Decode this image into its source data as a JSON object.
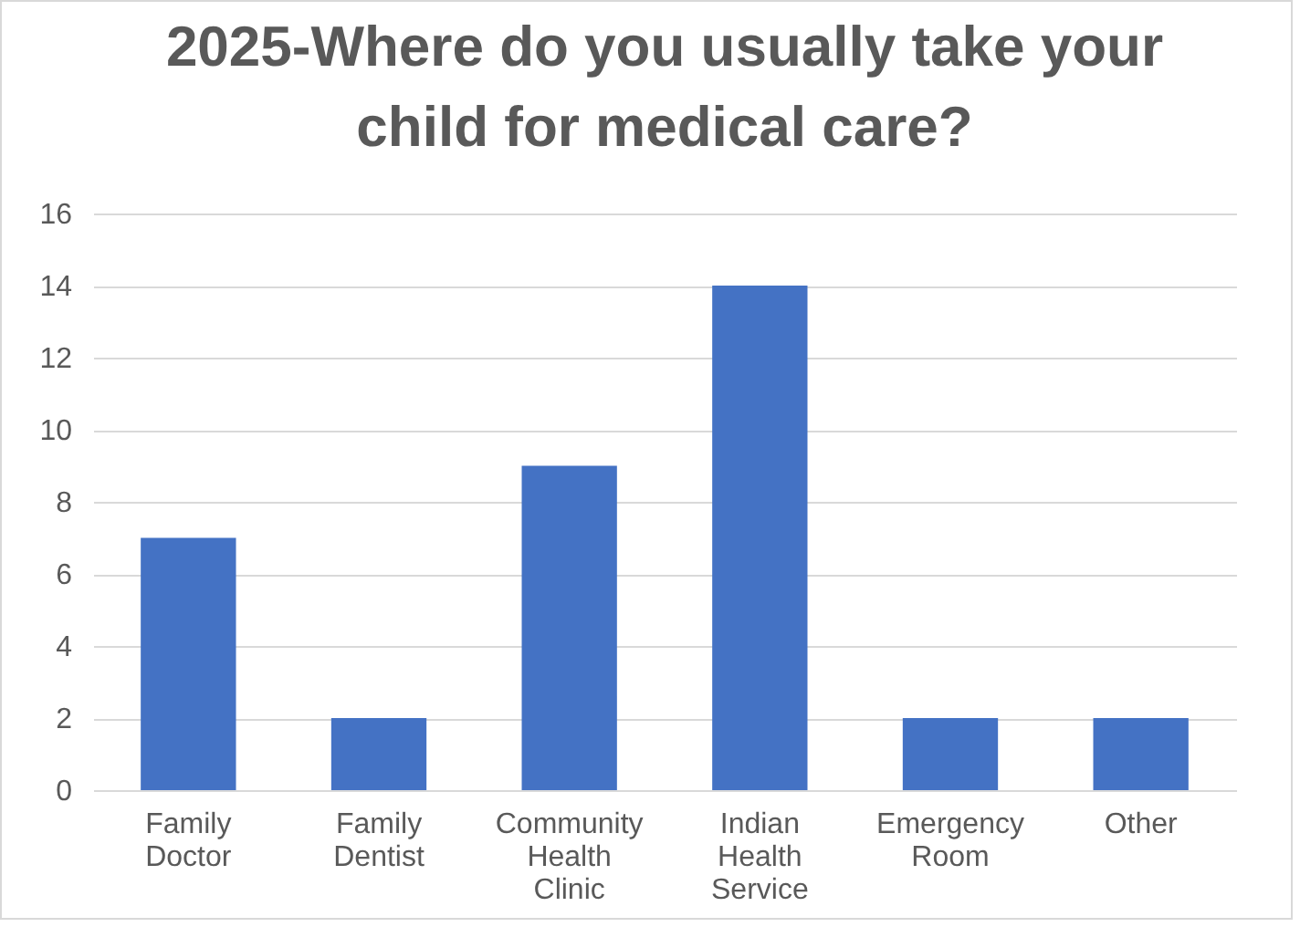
{
  "chart_data": {
    "type": "bar",
    "title": "2025-Where do you usually take your child for medical care?",
    "categories": [
      "Family Doctor",
      "Family Dentist",
      "Community Health Clinic",
      "Indian Health Service",
      "Emergency Room",
      "Other"
    ],
    "values": [
      7,
      2,
      9,
      14,
      2,
      2
    ],
    "color": "#4472c4",
    "ylim": [
      0,
      16
    ],
    "yticks": [
      0,
      2,
      4,
      6,
      8,
      10,
      12,
      14,
      16
    ],
    "grid": "y"
  }
}
